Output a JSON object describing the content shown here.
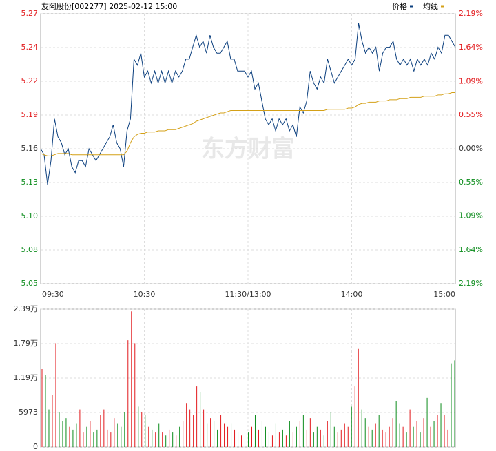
{
  "chart_data": [
    {
      "type": "line",
      "title": "友阿股份[002277] 2025-02-12 15:00",
      "watermark": "东方财富",
      "x": [
        0,
        2,
        4,
        6,
        8,
        10,
        12,
        14,
        16,
        18,
        20,
        22,
        24,
        26,
        28,
        30,
        32,
        34,
        36,
        38,
        40,
        42,
        44,
        46,
        48,
        50,
        52,
        54,
        56,
        58,
        60,
        62,
        64,
        66,
        68,
        70,
        72,
        74,
        76,
        78,
        80,
        82,
        84,
        86,
        88,
        90,
        92,
        94,
        96,
        98,
        100,
        102,
        104,
        106,
        108,
        110,
        112,
        114,
        116,
        118,
        120,
        122,
        124,
        126,
        128,
        130,
        132,
        134,
        136,
        138,
        140,
        142,
        144,
        146,
        148,
        150,
        152,
        154,
        156,
        158,
        160,
        162,
        164,
        166,
        168,
        170,
        172,
        174,
        176,
        178,
        180,
        182,
        184,
        186,
        188,
        190,
        192,
        194,
        196,
        198,
        200,
        202,
        204,
        206,
        208,
        210,
        212,
        214,
        216,
        218,
        220,
        222,
        224,
        226,
        228,
        230,
        232,
        234,
        236,
        238,
        240
      ],
      "xlim": [
        0,
        240
      ],
      "xticks": [
        {
          "value": 0,
          "label": "09:30"
        },
        {
          "value": 60,
          "label": "10:30"
        },
        {
          "value": 120,
          "label": "11:30/13:00"
        },
        {
          "value": 180,
          "label": "14:00"
        },
        {
          "value": 240,
          "label": "15:00"
        }
      ],
      "ylim": [
        5.047,
        5.273
      ],
      "yticks": [
        {
          "value": 5.273,
          "label": "5.27"
        },
        {
          "value": 5.24475,
          "label": "5.24"
        },
        {
          "value": 5.2165,
          "label": "5.22"
        },
        {
          "value": 5.18825,
          "label": "5.19"
        },
        {
          "value": 5.16,
          "label": "5.16"
        },
        {
          "value": 5.13175,
          "label": "5.13"
        },
        {
          "value": 5.1035,
          "label": "5.10"
        },
        {
          "value": 5.07525,
          "label": "5.08"
        },
        {
          "value": 5.047,
          "label": "5.05"
        }
      ],
      "y2lim": [
        -2.19,
        2.19
      ],
      "y2ticks": [
        {
          "value": 2.19,
          "label": "2.19%"
        },
        {
          "value": 1.64,
          "label": "1.64%"
        },
        {
          "value": 1.09,
          "label": "1.09%"
        },
        {
          "value": 0.55,
          "label": "0.55%"
        },
        {
          "value": 0,
          "label": "0.00%"
        },
        {
          "value": -0.55,
          "label": "0.55%"
        },
        {
          "value": -1.09,
          "label": "1.09%"
        },
        {
          "value": -1.64,
          "label": "1.64%"
        },
        {
          "value": -2.19,
          "label": "2.19%"
        }
      ],
      "grid": true,
      "up_color": "#e2191c",
      "down_color": "#0c8c1c",
      "flat_color": "#333333",
      "series": [
        {
          "name": "价格",
          "color": "#0b3f7e",
          "values": [
            5.16,
            5.155,
            5.13,
            5.15,
            5.185,
            5.17,
            5.165,
            5.155,
            5.16,
            5.145,
            5.14,
            5.15,
            5.15,
            5.145,
            5.16,
            5.155,
            5.15,
            5.155,
            5.16,
            5.165,
            5.17,
            5.18,
            5.165,
            5.16,
            5.145,
            5.175,
            5.185,
            5.235,
            5.23,
            5.24,
            5.22,
            5.225,
            5.215,
            5.225,
            5.215,
            5.225,
            5.215,
            5.225,
            5.215,
            5.225,
            5.22,
            5.225,
            5.235,
            5.235,
            5.245,
            5.255,
            5.245,
            5.25,
            5.24,
            5.255,
            5.245,
            5.24,
            5.24,
            5.245,
            5.25,
            5.235,
            5.235,
            5.225,
            5.225,
            5.225,
            5.22,
            5.225,
            5.21,
            5.215,
            5.2,
            5.185,
            5.18,
            5.185,
            5.175,
            5.185,
            5.18,
            5.185,
            5.175,
            5.18,
            5.17,
            5.195,
            5.19,
            5.2,
            5.225,
            5.215,
            5.21,
            5.22,
            5.215,
            5.235,
            5.225,
            5.215,
            5.22,
            5.225,
            5.23,
            5.235,
            5.23,
            5.235,
            5.265,
            5.25,
            5.24,
            5.245,
            5.24,
            5.245,
            5.225,
            5.24,
            5.245,
            5.245,
            5.25,
            5.235,
            5.23,
            5.235,
            5.23,
            5.235,
            5.225,
            5.235,
            5.23,
            5.235,
            5.23,
            5.24,
            5.235,
            5.245,
            5.24,
            5.255,
            5.255,
            5.25,
            5.245
          ]
        },
        {
          "name": "均线",
          "color": "#d4a017",
          "values": [
            5.156,
            5.155,
            5.154,
            5.154,
            5.155,
            5.156,
            5.156,
            5.156,
            5.156,
            5.155,
            5.155,
            5.155,
            5.155,
            5.155,
            5.155,
            5.155,
            5.155,
            5.155,
            5.155,
            5.155,
            5.155,
            5.155,
            5.155,
            5.155,
            5.155,
            5.158,
            5.165,
            5.17,
            5.172,
            5.173,
            5.173,
            5.174,
            5.174,
            5.174,
            5.175,
            5.175,
            5.175,
            5.176,
            5.176,
            5.176,
            5.177,
            5.178,
            5.179,
            5.18,
            5.181,
            5.183,
            5.184,
            5.185,
            5.186,
            5.187,
            5.188,
            5.189,
            5.19,
            5.19,
            5.191,
            5.192,
            5.192,
            5.192,
            5.192,
            5.192,
            5.192,
            5.192,
            5.192,
            5.192,
            5.192,
            5.192,
            5.192,
            5.192,
            5.192,
            5.192,
            5.192,
            5.192,
            5.192,
            5.192,
            5.192,
            5.192,
            5.192,
            5.192,
            5.192,
            5.192,
            5.192,
            5.192,
            5.192,
            5.193,
            5.193,
            5.193,
            5.193,
            5.193,
            5.193,
            5.194,
            5.194,
            5.195,
            5.197,
            5.198,
            5.198,
            5.199,
            5.199,
            5.199,
            5.2,
            5.2,
            5.2,
            5.201,
            5.201,
            5.201,
            5.202,
            5.202,
            5.202,
            5.203,
            5.203,
            5.203,
            5.203,
            5.204,
            5.204,
            5.204,
            5.204,
            5.205,
            5.205,
            5.206,
            5.206,
            5.207,
            5.207
          ]
        }
      ]
    },
    {
      "type": "volume",
      "x": [
        0,
        2,
        4,
        6,
        8,
        10,
        12,
        14,
        16,
        18,
        20,
        22,
        24,
        26,
        28,
        30,
        32,
        34,
        36,
        38,
        40,
        42,
        44,
        46,
        48,
        50,
        52,
        54,
        56,
        58,
        60,
        62,
        64,
        66,
        68,
        70,
        72,
        74,
        76,
        78,
        80,
        82,
        84,
        86,
        88,
        90,
        92,
        94,
        96,
        98,
        100,
        102,
        104,
        106,
        108,
        110,
        112,
        114,
        116,
        118,
        120,
        122,
        124,
        126,
        128,
        130,
        132,
        134,
        136,
        138,
        140,
        142,
        144,
        146,
        148,
        150,
        152,
        154,
        156,
        158,
        160,
        162,
        164,
        166,
        168,
        170,
        172,
        174,
        176,
        178,
        180,
        182,
        184,
        186,
        188,
        190,
        192,
        194,
        196,
        198,
        200,
        202,
        204,
        206,
        208,
        210,
        212,
        214,
        216,
        218,
        220,
        222,
        224,
        226,
        228,
        230,
        232,
        234,
        236,
        238,
        240
      ],
      "xlim": [
        0,
        240
      ],
      "ylim": [
        0,
        23892
      ],
      "yticks": [
        {
          "value": 23892,
          "label": "2.39万"
        },
        {
          "value": 17919,
          "label": "1.79万"
        },
        {
          "value": 11946,
          "label": "1.19万"
        },
        5973,
        0
      ],
      "values": [
        13500,
        12500,
        6500,
        9000,
        18000,
        6000,
        4500,
        5000,
        3500,
        3000,
        4000,
        6500,
        2500,
        3500,
        4500,
        2500,
        3000,
        5500,
        6500,
        3000,
        2500,
        5000,
        4000,
        3500,
        6000,
        18500,
        23500,
        18000,
        7000,
        6000,
        5500,
        3500,
        3000,
        2500,
        4000,
        2500,
        2000,
        3000,
        2500,
        2000,
        3500,
        4500,
        7500,
        6500,
        5500,
        10500,
        9500,
        6500,
        4000,
        5000,
        4500,
        3000,
        5500,
        4000,
        3500,
        4000,
        3000,
        2500,
        2000,
        3000,
        2500,
        3500,
        5500,
        3000,
        4500,
        3500,
        2500,
        2000,
        4000,
        2500,
        3000,
        2000,
        4500,
        2500,
        3500,
        4500,
        5500,
        3000,
        5000,
        2500,
        3500,
        3000,
        2000,
        4500,
        6000,
        3500,
        2500,
        3000,
        4000,
        3500,
        7000,
        10500,
        17000,
        6500,
        5000,
        3500,
        3000,
        4000,
        5500,
        3000,
        2500,
        3500,
        5000,
        8000,
        4000,
        3500,
        2500,
        6500,
        3500,
        4500,
        2500,
        5000,
        8500,
        3500,
        4500,
        5500,
        7500,
        5500,
        3000,
        14500,
        15000
      ]
    }
  ]
}
